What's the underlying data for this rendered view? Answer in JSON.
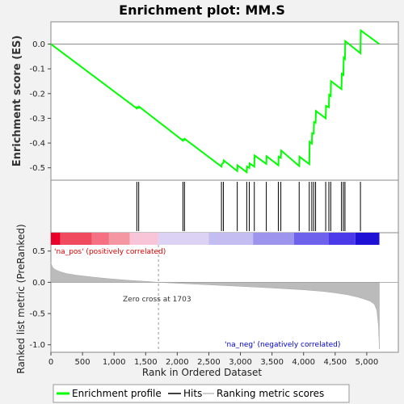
{
  "chart_data": {
    "type": "line",
    "title": "Enrichment plot: MM.S",
    "top_panel": {
      "ylabel": "Enrichment score (ES)",
      "ylim": [
        -0.55,
        0.09
      ],
      "yticks": [
        0.0,
        -0.1,
        -0.2,
        -0.3,
        -0.4,
        -0.5
      ],
      "ytick_labels": [
        "0.0",
        "-0.1",
        "-0.2",
        "-0.3",
        "-0.4",
        "-0.5"
      ],
      "series": [
        {
          "name": "Enrichment profile",
          "color": "#00ff00",
          "x": [
            0,
            1360,
            1365,
            1390,
            1395,
            2090,
            2095,
            2115,
            2120,
            2700,
            2705,
            2730,
            2735,
            2950,
            2955,
            3100,
            3105,
            3140,
            3145,
            3220,
            3225,
            3410,
            3415,
            3600,
            3605,
            3640,
            3645,
            3930,
            3935,
            4090,
            4095,
            4130,
            4135,
            4160,
            4165,
            4190,
            4195,
            4350,
            4355,
            4400,
            4405,
            4430,
            4435,
            4600,
            4605,
            4630,
            4635,
            4655,
            4660,
            4900,
            4905,
            5200
          ],
          "y": [
            0.0,
            -0.26,
            -0.255,
            -0.258,
            -0.253,
            -0.39,
            -0.385,
            -0.387,
            -0.383,
            -0.495,
            -0.485,
            -0.48,
            -0.47,
            -0.513,
            -0.49,
            -0.518,
            -0.495,
            -0.5,
            -0.482,
            -0.495,
            -0.45,
            -0.484,
            -0.453,
            -0.49,
            -0.455,
            -0.46,
            -0.43,
            -0.493,
            -0.455,
            -0.485,
            -0.395,
            -0.402,
            -0.36,
            -0.362,
            -0.315,
            -0.318,
            -0.27,
            -0.3,
            -0.25,
            -0.255,
            -0.205,
            -0.21,
            -0.15,
            -0.182,
            -0.12,
            -0.125,
            -0.055,
            -0.06,
            0.012,
            -0.037,
            0.055,
            0.0
          ]
        }
      ],
      "zero_line": 0.0
    },
    "hits_panel": {
      "name": "Hits",
      "positions": [
        1360,
        1390,
        2090,
        2115,
        2700,
        2730,
        2950,
        3100,
        3140,
        3220,
        3410,
        3600,
        3640,
        3930,
        4090,
        4130,
        4160,
        4190,
        4350,
        4400,
        4430,
        4600,
        4630,
        4655,
        4900
      ]
    },
    "rank_panel": {
      "name": "Ranking metric scores",
      "ylabel": "Ranked list metric (PreRanked)",
      "ylim": [
        -1.12,
        0.6
      ],
      "yticks": [
        0.5,
        0.0,
        -0.5,
        -1.0
      ],
      "ytick_labels": [
        "0.5",
        "0.0",
        "-0.5",
        "-1.0"
      ],
      "curve_x": [
        0,
        5,
        15,
        30,
        60,
        100,
        150,
        250,
        400,
        600,
        900,
        1200,
        1500,
        1703,
        2000,
        2500,
        3000,
        3500,
        4000,
        4300,
        4500,
        4700,
        4850,
        4950,
        5050,
        5120,
        5160,
        5185,
        5200
      ],
      "curve_y": [
        0.32,
        0.3,
        0.27,
        0.24,
        0.21,
        0.19,
        0.17,
        0.14,
        0.115,
        0.09,
        0.06,
        0.035,
        0.015,
        0.0,
        -0.015,
        -0.04,
        -0.065,
        -0.09,
        -0.12,
        -0.145,
        -0.17,
        -0.2,
        -0.235,
        -0.265,
        -0.3,
        -0.35,
        -0.45,
        -0.7,
        -1.07
      ],
      "zero_cross_rank": 1703,
      "zero_cross_label": "Zero cross at 1703",
      "pos_label": "'na_pos' (positively correlated)",
      "neg_label": "'na_neg' (negatively correlated)",
      "pos_color": "#dd0000",
      "neg_color": "#0000dd"
    },
    "heatmap_bar": [
      {
        "from": 0,
        "to": 150,
        "color": "#e8002a"
      },
      {
        "from": 150,
        "to": 650,
        "color": "#f04a5e"
      },
      {
        "from": 650,
        "to": 920,
        "color": "#f47082"
      },
      {
        "from": 920,
        "to": 1250,
        "color": "#f597a3"
      },
      {
        "from": 1250,
        "to": 1700,
        "color": "#f7c5d7"
      },
      {
        "from": 1700,
        "to": 2500,
        "color": "#dcd3f4"
      },
      {
        "from": 2500,
        "to": 3200,
        "color": "#c4bdf2"
      },
      {
        "from": 3200,
        "to": 3850,
        "color": "#9d94ee"
      },
      {
        "from": 3850,
        "to": 4400,
        "color": "#6e62ec"
      },
      {
        "from": 4400,
        "to": 4820,
        "color": "#4a3aea"
      },
      {
        "from": 4820,
        "to": 5200,
        "color": "#1f10d6"
      }
    ],
    "xaxis": {
      "label": "Rank in Ordered Dataset",
      "range": [
        0,
        5500
      ],
      "ticks": [
        0,
        500,
        1000,
        1500,
        2000,
        2500,
        3000,
        3500,
        4000,
        4500,
        5000
      ],
      "tick_labels": [
        "0",
        "500",
        "1,000",
        "1,500",
        "2,000",
        "2,500",
        "3,000",
        "3,500",
        "4,000",
        "4,500",
        "5,000"
      ]
    },
    "legend": {
      "placement": "bottom",
      "entries": [
        {
          "label": "Enrichment profile",
          "color": "#00ff00"
        },
        {
          "label": "Hits",
          "color": "#000000"
        },
        {
          "label": "Ranking metric scores",
          "color": "#bbbbbb"
        }
      ]
    }
  }
}
